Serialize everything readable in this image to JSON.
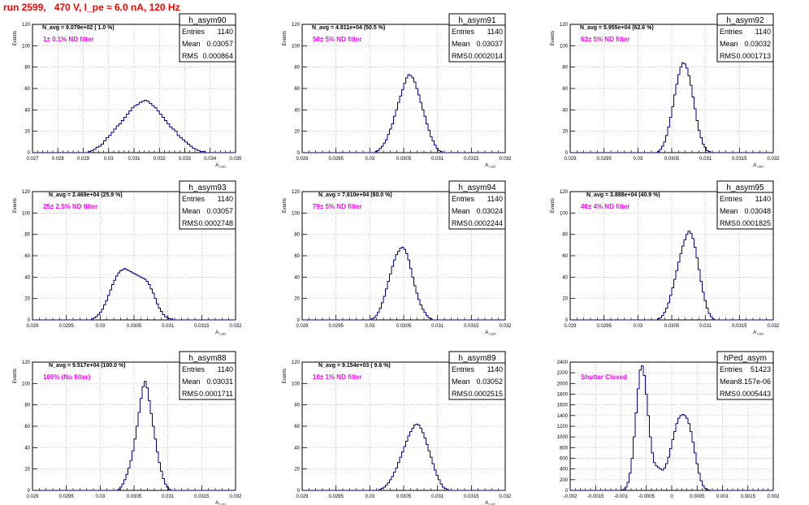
{
  "canvas_title": "run 2599,   470 V, I_pe ≈ 6.0 nA, 120 Hz",
  "stats_labels": {
    "entries": "Entries",
    "mean": "Mean",
    "rms": "RMS"
  },
  "colors": {
    "histogram": "#000080",
    "annotation": "#ff00ff",
    "title": "#ff0000",
    "grid": "#b0b0b0"
  },
  "chart_data": [
    {
      "type": "histogram",
      "name": "h_asym90",
      "ylabel": "Events",
      "xlabel": "A_{LED}",
      "xlim": [
        0.027,
        0.035
      ],
      "ylim": [
        0,
        120
      ],
      "xticks": [
        0.027,
        0.028,
        0.029,
        0.03,
        0.031,
        0.032,
        0.033,
        0.034,
        0.035
      ],
      "xticklabels": [
        "0.027",
        "0.028",
        "0.029",
        "0.03",
        "0.031",
        "0.032",
        "0.033",
        "0.034",
        "0.035"
      ],
      "yticks": [
        0,
        20,
        40,
        60,
        80,
        100,
        120
      ],
      "nbins": 80,
      "n_avg_text": "N_avg = 9.079e+02 ( 1.0 %)",
      "filter_text": "1± 0.1% ND filter",
      "stats": {
        "entries": "1140",
        "mean": "0.03057",
        "rms": "0.000864"
      },
      "grid": true,
      "values": [
        0,
        0,
        0,
        0,
        0,
        0,
        0,
        0,
        0,
        0,
        0,
        0,
        0,
        0,
        0,
        0,
        0,
        0,
        0,
        0,
        0,
        0,
        1,
        2,
        3,
        5,
        6,
        8,
        11,
        14,
        16,
        19,
        22,
        25,
        27,
        30,
        33,
        36,
        39,
        42,
        44,
        45,
        47,
        48,
        49,
        48,
        46,
        44,
        42,
        39,
        36,
        33,
        30,
        27,
        24,
        22,
        20,
        16,
        14,
        12,
        10,
        8,
        6,
        4,
        3,
        2,
        1,
        1,
        0,
        0,
        0,
        0,
        0,
        0,
        0,
        0,
        0,
        0,
        0,
        0
      ]
    },
    {
      "type": "histogram",
      "name": "h_asym91",
      "ylabel": "Events",
      "xlabel": "A_{LED}",
      "xlim": [
        0.029,
        0.032
      ],
      "ylim": [
        0,
        120
      ],
      "xticks": [
        0.029,
        0.0295,
        0.03,
        0.0305,
        0.031,
        0.0315,
        0.032
      ],
      "xticklabels": [
        "0.029",
        "0.0295",
        "0.03",
        "0.0305",
        "0.031",
        "0.0315",
        "0.032"
      ],
      "yticks": [
        0,
        20,
        40,
        60,
        80,
        100,
        120
      ],
      "nbins": 100,
      "n_avg_text": "N_avg = 4.811e+04 (50.5 %)",
      "filter_text": "50± 5% ND filter",
      "stats": {
        "entries": "1140",
        "mean": "0.03037",
        "rms": "0.0002014"
      },
      "grid": true,
      "values": [
        0,
        0,
        0,
        0,
        0,
        0,
        0,
        0,
        0,
        0,
        0,
        0,
        0,
        0,
        0,
        0,
        0,
        0,
        0,
        0,
        0,
        0,
        0,
        0,
        0,
        0,
        0,
        0,
        0,
        0,
        0,
        0,
        0,
        0,
        0,
        0,
        1,
        2,
        4,
        6,
        9,
        12,
        17,
        22,
        27,
        34,
        40,
        47,
        53,
        59,
        65,
        70,
        73,
        72,
        70,
        66,
        60,
        54,
        47,
        40,
        34,
        27,
        21,
        15,
        11,
        7,
        4,
        2,
        1,
        0,
        0,
        0,
        0,
        0,
        0,
        0,
        0,
        0,
        0,
        0,
        0,
        0,
        0,
        0,
        0,
        0,
        0,
        0,
        0,
        0,
        0,
        0,
        0,
        0,
        0,
        0,
        0,
        0,
        0,
        0
      ]
    },
    {
      "type": "histogram",
      "name": "h_asym92",
      "ylabel": "Events",
      "xlabel": "A_{LED}",
      "xlim": [
        0.029,
        0.032
      ],
      "ylim": [
        0,
        120
      ],
      "xticks": [
        0.029,
        0.0295,
        0.03,
        0.0305,
        0.031,
        0.0315,
        0.032
      ],
      "xticklabels": [
        "0.029",
        "0.0295",
        "0.03",
        "0.0305",
        "0.031",
        "0.0315",
        "0.032"
      ],
      "yticks": [
        0,
        20,
        40,
        60,
        80,
        100,
        120
      ],
      "nbins": 100,
      "n_avg_text": "N_avg = 5.955e+04 (62.6 %)",
      "filter_text": "63± 5% ND filter",
      "stats": {
        "entries": "1140",
        "mean": "0.03032",
        "rms": "0.0001713"
      },
      "grid": true,
      "values": [
        0,
        0,
        0,
        0,
        0,
        0,
        0,
        0,
        0,
        0,
        0,
        0,
        0,
        0,
        0,
        0,
        0,
        0,
        0,
        0,
        0,
        0,
        0,
        0,
        0,
        0,
        0,
        0,
        0,
        0,
        0,
        0,
        0,
        0,
        0,
        0,
        0,
        0,
        0,
        0,
        0,
        0,
        0,
        1,
        3,
        6,
        10,
        16,
        24,
        33,
        43,
        54,
        64,
        73,
        80,
        84,
        83,
        79,
        72,
        63,
        52,
        41,
        30,
        21,
        14,
        8,
        5,
        2,
        1,
        0,
        0,
        0,
        0,
        0,
        0,
        0,
        0,
        0,
        0,
        0,
        0,
        0,
        0,
        0,
        0,
        0,
        0,
        0,
        0,
        0,
        0,
        0,
        0,
        0,
        0,
        0,
        0,
        0,
        0,
        0
      ]
    },
    {
      "type": "histogram",
      "name": "h_asym93",
      "ylabel": "Events",
      "xlabel": "A_{LED}",
      "xlim": [
        0.029,
        0.032
      ],
      "ylim": [
        0,
        120
      ],
      "xticks": [
        0.029,
        0.0295,
        0.03,
        0.0305,
        0.031,
        0.0315,
        0.032
      ],
      "xticklabels": [
        "0.029",
        "0.0295",
        "0.03",
        "0.0305",
        "0.031",
        "0.0315",
        "0.032"
      ],
      "yticks": [
        0,
        20,
        40,
        60,
        80,
        100,
        120
      ],
      "nbins": 100,
      "n_avg_text": "N_avg = 2.469e+04 (25.9 %)",
      "filter_text": "25± 2.5% ND filter",
      "stats": {
        "entries": "1140",
        "mean": "0.03057",
        "rms": "0.0002748"
      },
      "grid": true,
      "values": [
        0,
        0,
        0,
        0,
        0,
        0,
        0,
        0,
        0,
        0,
        0,
        0,
        0,
        0,
        0,
        0,
        0,
        0,
        0,
        0,
        0,
        0,
        0,
        0,
        0,
        0,
        0,
        0,
        0,
        1,
        2,
        3,
        5,
        7,
        10,
        14,
        18,
        23,
        28,
        33,
        37,
        41,
        44,
        46,
        47,
        48,
        47,
        46,
        45,
        44,
        43,
        42,
        41,
        40,
        39,
        38,
        36,
        33,
        29,
        25,
        20,
        15,
        11,
        8,
        5,
        3,
        2,
        1,
        1,
        0,
        0,
        0,
        0,
        0,
        0,
        0,
        0,
        0,
        0,
        0,
        0,
        0,
        0,
        0,
        0,
        0,
        0,
        0,
        0,
        0,
        0,
        0,
        0,
        0,
        0,
        0,
        0,
        0,
        0,
        0
      ]
    },
    {
      "type": "histogram",
      "name": "h_asym94",
      "ylabel": "Events",
      "xlabel": "A_{LED}",
      "xlim": [
        0.029,
        0.032
      ],
      "ylim": [
        0,
        120
      ],
      "xticks": [
        0.029,
        0.0295,
        0.03,
        0.0305,
        0.031,
        0.0315,
        0.032
      ],
      "xticklabels": [
        "0.029",
        "0.0295",
        "0.03",
        "0.0305",
        "0.031",
        "0.0315",
        "0.032"
      ],
      "yticks": [
        0,
        20,
        40,
        60,
        80,
        100,
        120
      ],
      "nbins": 100,
      "n_avg_text": "N_avg = 7.610e+04 (80.0 %)",
      "filter_text": "79± 5% ND filter",
      "stats": {
        "entries": "1140",
        "mean": "0.03024",
        "rms": "0.0002244"
      },
      "grid": true,
      "values": [
        0,
        0,
        0,
        0,
        0,
        0,
        0,
        0,
        0,
        0,
        0,
        0,
        0,
        0,
        0,
        0,
        0,
        0,
        0,
        0,
        0,
        0,
        0,
        0,
        0,
        0,
        0,
        0,
        0,
        0,
        0,
        0,
        0,
        0,
        1,
        2,
        4,
        7,
        11,
        16,
        22,
        29,
        36,
        43,
        50,
        56,
        61,
        64,
        67,
        68,
        66,
        62,
        56,
        48,
        40,
        32,
        25,
        19,
        14,
        10,
        7,
        4,
        2,
        1,
        0,
        0,
        0,
        0,
        0,
        0,
        0,
        0,
        0,
        0,
        0,
        0,
        0,
        0,
        0,
        0,
        0,
        0,
        0,
        0,
        0,
        0,
        0,
        0,
        0,
        0,
        0,
        0,
        0,
        0,
        0,
        0,
        0,
        0,
        0,
        0
      ]
    },
    {
      "type": "histogram",
      "name": "h_asym95",
      "ylabel": "Events",
      "xlabel": "A_{LED}",
      "xlim": [
        0.029,
        0.032
      ],
      "ylim": [
        0,
        120
      ],
      "xticks": [
        0.029,
        0.0295,
        0.03,
        0.0305,
        0.031,
        0.0315,
        0.032
      ],
      "xticklabels": [
        "0.029",
        "0.0295",
        "0.03",
        "0.0305",
        "0.031",
        "0.0315",
        "0.032"
      ],
      "yticks": [
        0,
        20,
        40,
        60,
        80,
        100,
        120
      ],
      "nbins": 100,
      "n_avg_text": "N_avg = 3.888e+04 (40.9 %)",
      "filter_text": "40± 4% ND filter",
      "stats": {
        "entries": "1140",
        "mean": "0.03048",
        "rms": "0.0001825"
      },
      "grid": true,
      "values": [
        0,
        0,
        0,
        0,
        0,
        0,
        0,
        0,
        0,
        0,
        0,
        0,
        0,
        0,
        0,
        0,
        0,
        0,
        0,
        0,
        0,
        0,
        0,
        0,
        0,
        0,
        0,
        0,
        0,
        0,
        0,
        0,
        0,
        0,
        0,
        0,
        0,
        0,
        0,
        0,
        0,
        0,
        0,
        1,
        2,
        4,
        7,
        11,
        16,
        23,
        30,
        38,
        46,
        54,
        62,
        69,
        75,
        80,
        83,
        81,
        76,
        68,
        58,
        47,
        36,
        26,
        18,
        11,
        6,
        3,
        1,
        0,
        0,
        0,
        0,
        0,
        0,
        0,
        0,
        0,
        0,
        0,
        0,
        0,
        0,
        0,
        0,
        0,
        0,
        0,
        0,
        0,
        0,
        0,
        0,
        0,
        0,
        0,
        0,
        0
      ]
    },
    {
      "type": "histogram",
      "name": "h_asym88",
      "ylabel": "Events",
      "xlabel": "A_{LED}",
      "xlim": [
        0.029,
        0.032
      ],
      "ylim": [
        0,
        120
      ],
      "xticks": [
        0.029,
        0.0295,
        0.03,
        0.0305,
        0.031,
        0.0315,
        0.032
      ],
      "xticklabels": [
        "0.029",
        "0.0295",
        "0.03",
        "0.0305",
        "0.031",
        "0.0315",
        "0.032"
      ],
      "yticks": [
        0,
        20,
        40,
        60,
        80,
        100,
        120
      ],
      "nbins": 100,
      "n_avg_text": "N_avg = 9.517e+04 (100.0 %)",
      "filter_text": "100% (No filter)",
      "stats": {
        "entries": "1140",
        "mean": "0.03031",
        "rms": "0.0001711"
      },
      "grid": true,
      "values": [
        0,
        0,
        0,
        0,
        0,
        0,
        0,
        0,
        0,
        0,
        0,
        0,
        0,
        0,
        0,
        0,
        0,
        0,
        0,
        0,
        0,
        0,
        0,
        0,
        0,
        0,
        0,
        0,
        0,
        0,
        0,
        0,
        0,
        0,
        0,
        0,
        0,
        0,
        0,
        0,
        0,
        0,
        1,
        3,
        6,
        10,
        15,
        21,
        28,
        37,
        48,
        60,
        73,
        86,
        97,
        102,
        96,
        84,
        72,
        60,
        48,
        36,
        26,
        18,
        11,
        6,
        3,
        1,
        0,
        0,
        0,
        0,
        0,
        0,
        0,
        0,
        0,
        0,
        0,
        0,
        0,
        0,
        0,
        0,
        0,
        0,
        0,
        0,
        0,
        0,
        0,
        0,
        0,
        0,
        0,
        0,
        0,
        0,
        0,
        0
      ]
    },
    {
      "type": "histogram",
      "name": "h_asym89",
      "ylabel": "Events",
      "xlabel": "A_{LED}",
      "xlim": [
        0.029,
        0.032
      ],
      "ylim": [
        0,
        120
      ],
      "xticks": [
        0.029,
        0.0295,
        0.03,
        0.0305,
        0.031,
        0.0315,
        0.032
      ],
      "xticklabels": [
        "0.029",
        "0.0295",
        "0.03",
        "0.0305",
        "0.031",
        "0.0315",
        "0.032"
      ],
      "yticks": [
        0,
        20,
        40,
        60,
        80,
        100,
        120
      ],
      "nbins": 100,
      "n_avg_text": "N_avg = 9.154e+03 ( 9.6 %)",
      "filter_text": "10± 1% ND filter",
      "stats": {
        "entries": "1140",
        "mean": "0.03052",
        "rms": "0.0002515"
      },
      "grid": true,
      "values": [
        0,
        0,
        0,
        0,
        0,
        0,
        0,
        0,
        0,
        0,
        0,
        0,
        0,
        0,
        0,
        0,
        0,
        0,
        0,
        0,
        0,
        0,
        0,
        0,
        0,
        0,
        0,
        0,
        0,
        0,
        0,
        0,
        0,
        0,
        0,
        0,
        0,
        0,
        1,
        2,
        3,
        5,
        7,
        10,
        13,
        17,
        21,
        26,
        31,
        36,
        41,
        46,
        51,
        55,
        58,
        61,
        62,
        61,
        58,
        54,
        49,
        43,
        37,
        31,
        25,
        19,
        14,
        10,
        6,
        3,
        2,
        1,
        0,
        0,
        0,
        0,
        0,
        0,
        0,
        0,
        0,
        0,
        0,
        0,
        0,
        0,
        0,
        0,
        0,
        0,
        0,
        0,
        0,
        0,
        0,
        0,
        0,
        0,
        0,
        0
      ]
    },
    {
      "type": "histogram",
      "name": "hPed_asym",
      "ylabel": "",
      "xlabel": "",
      "xlim": [
        -0.002,
        0.002
      ],
      "ylim": [
        0,
        2400
      ],
      "xticks": [
        -0.002,
        -0.0015,
        -0.001,
        -0.0005,
        0,
        0.0005,
        0.001,
        0.0015,
        0.002
      ],
      "xticklabels": [
        "-0.002",
        "-0.0015",
        "-0.001",
        "-0.0005",
        "0",
        "0.0005",
        "0.001",
        "0.0015",
        "0.002"
      ],
      "yticks": [
        0,
        200,
        400,
        600,
        800,
        1000,
        1200,
        1400,
        1600,
        1800,
        2000,
        2200,
        2400
      ],
      "nbins": 100,
      "n_avg_text": "",
      "filter_text": "Shutter Closed",
      "stats": {
        "entries": "51423",
        "mean": "8.157e-06",
        "rms": "0.0005443"
      },
      "grid": true,
      "values": [
        0,
        0,
        0,
        0,
        0,
        0,
        0,
        0,
        0,
        0,
        0,
        0,
        0,
        0,
        0,
        0,
        0,
        0,
        0,
        0,
        0,
        0,
        0,
        0,
        0,
        5,
        20,
        60,
        150,
        320,
        600,
        1000,
        1450,
        1900,
        2250,
        2330,
        2150,
        1800,
        1400,
        1000,
        700,
        520,
        460,
        430,
        400,
        380,
        420,
        500,
        620,
        780,
        950,
        1100,
        1250,
        1350,
        1400,
        1420,
        1400,
        1350,
        1250,
        1100,
        900,
        700,
        500,
        320,
        180,
        90,
        40,
        15,
        5,
        0,
        0,
        0,
        0,
        0,
        0,
        0,
        0,
        0,
        0,
        0,
        0,
        0,
        0,
        0,
        0,
        0,
        0,
        0,
        0,
        0,
        0,
        0,
        0,
        0,
        0,
        0,
        0,
        0,
        0,
        0
      ]
    }
  ]
}
